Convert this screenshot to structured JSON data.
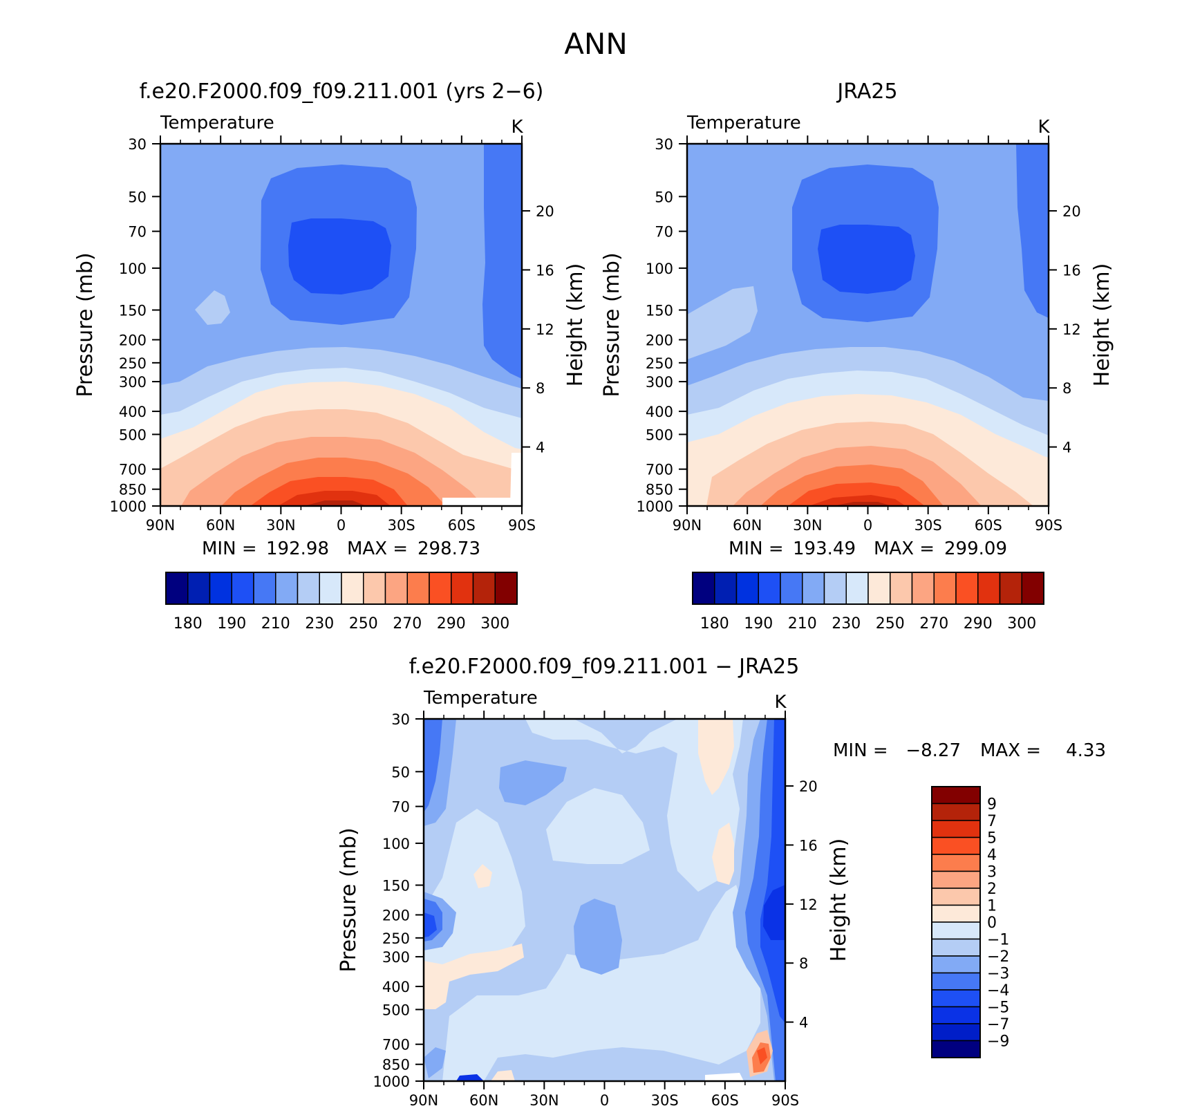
{
  "page_title": "ANN",
  "colors": {
    "absolute_levels": [
      "#00007f",
      "#001fb2",
      "#0032e0",
      "#1e50f5",
      "#4678f5",
      "#82aaf5",
      "#b4cdf5",
      "#d7e8fa",
      "#fde9d9",
      "#fcc8ac",
      "#fca582",
      "#fc7d4d",
      "#fa5023",
      "#e1320f",
      "#b4230a",
      "#820000"
    ],
    "difference_levels": [
      "#000080",
      "#001ec8",
      "#0a32e6",
      "#1e50f5",
      "#4678f5",
      "#82aaf5",
      "#b4cdf5",
      "#d7e8fa",
      "#fde9d9",
      "#fcc8ac",
      "#fca582",
      "#fc7d4d",
      "#fa5023",
      "#e1320f",
      "#b4230a",
      "#820000"
    ]
  },
  "chart_data": [
    {
      "type": "heatmap",
      "title": "f.e20.F2000.f09_f09.211.001 (yrs 2−6)",
      "left_label": "Temperature",
      "right_label": "K",
      "ylabel": "Pressure (mb)",
      "y2label": "Height (km)",
      "x_ticks": [
        "90N",
        "60N",
        "30N",
        "0",
        "30S",
        "60S",
        "90S"
      ],
      "y_ticks": [
        30,
        50,
        70,
        100,
        150,
        200,
        250,
        300,
        400,
        500,
        700,
        850,
        1000
      ],
      "y_log": true,
      "y2_ticks": [
        20,
        16,
        12,
        8,
        4
      ],
      "stats": {
        "min_label": "MIN =",
        "min": "192.98",
        "max_label": "MAX =",
        "max": "298.73"
      },
      "colorbar_labels": [
        "180",
        "190",
        "210",
        "230",
        "250",
        "270",
        "290",
        "300"
      ],
      "min": 192.98,
      "max": 298.73
    },
    {
      "type": "heatmap",
      "title": "JRA25",
      "left_label": "Temperature",
      "right_label": "K",
      "ylabel": "Pressure (mb)",
      "y2label": "Height (km)",
      "x_ticks": [
        "90N",
        "60N",
        "30N",
        "0",
        "30S",
        "60S",
        "90S"
      ],
      "y_ticks": [
        30,
        50,
        70,
        100,
        150,
        200,
        250,
        300,
        400,
        500,
        700,
        850,
        1000
      ],
      "y_log": true,
      "y2_ticks": [
        20,
        16,
        12,
        8,
        4
      ],
      "stats": {
        "min_label": "MIN =",
        "min": "193.49",
        "max_label": "MAX =",
        "max": "299.09"
      },
      "colorbar_labels": [
        "180",
        "190",
        "210",
        "230",
        "250",
        "270",
        "290",
        "300"
      ],
      "min": 193.49,
      "max": 299.09
    },
    {
      "type": "heatmap",
      "title": "f.e20.F2000.f09_f09.211.001 − JRA25",
      "left_label": "Temperature",
      "right_label": "K",
      "ylabel": "Pressure (mb)",
      "y2label": "Height (km)",
      "x_ticks": [
        "90N",
        "60N",
        "30N",
        "0",
        "30S",
        "60S",
        "90S"
      ],
      "y_ticks": [
        30,
        50,
        70,
        100,
        150,
        200,
        250,
        300,
        400,
        500,
        700,
        850,
        1000
      ],
      "y_log": true,
      "y2_ticks": [
        20,
        16,
        12,
        8,
        4
      ],
      "stats": {
        "min_label": "MIN =",
        "min": "−8.27",
        "max_label": "MAX =",
        "max": "4.33"
      },
      "colorbar_labels": [
        "9",
        "7",
        "5",
        "4",
        "3",
        "2",
        "1",
        "0",
        "−1",
        "−2",
        "−3",
        "−4",
        "−5",
        "−7",
        "−9"
      ],
      "min": -8.27,
      "max": 4.33
    }
  ]
}
